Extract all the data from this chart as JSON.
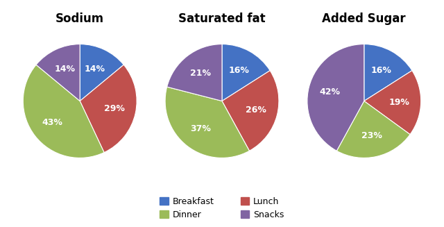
{
  "charts": [
    {
      "title": "Sodium",
      "labels": [
        "Breakfast",
        "Lunch",
        "Dinner",
        "Snacks"
      ],
      "values": [
        14,
        29,
        43,
        14
      ],
      "colors": [
        "#4472C4",
        "#C0504D",
        "#9BBB59",
        "#8064A2"
      ],
      "startangle": 90,
      "pct_labels": [
        "14%",
        "29%",
        "43%",
        "14%"
      ]
    },
    {
      "title": "Saturated fat",
      "labels": [
        "Breakfast",
        "Lunch",
        "Dinner",
        "Snacks"
      ],
      "values": [
        16,
        26,
        37,
        21
      ],
      "colors": [
        "#4472C4",
        "#C0504D",
        "#9BBB59",
        "#8064A2"
      ],
      "startangle": 90,
      "pct_labels": [
        "16%",
        "26%",
        "37%",
        "21%"
      ]
    },
    {
      "title": "Added Sugar",
      "labels": [
        "Breakfast",
        "Lunch",
        "Dinner",
        "Snacks"
      ],
      "values": [
        16,
        19,
        23,
        42
      ],
      "colors": [
        "#4472C4",
        "#C0504D",
        "#9BBB59",
        "#8064A2"
      ],
      "startangle": 90,
      "pct_labels": [
        "16%",
        "19%",
        "23%",
        "42%"
      ]
    }
  ],
  "legend_labels": [
    "Breakfast",
    "Dinner",
    "Lunch",
    "Snacks"
  ],
  "legend_colors": [
    "#4472C4",
    "#9BBB59",
    "#C0504D",
    "#8064A2"
  ],
  "background_color": "#FFFFFF",
  "text_color": "#FFFFFF",
  "title_fontsize": 12,
  "label_fontsize": 9
}
